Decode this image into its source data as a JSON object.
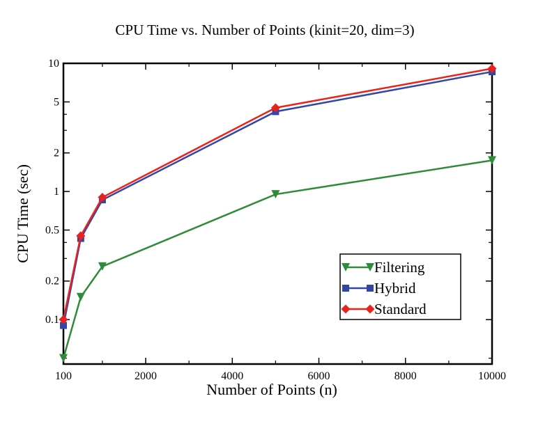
{
  "chart_data": {
    "type": "line",
    "title": "CPU Time vs. Number of Points (kinit=20, dim=3)",
    "xlabel": "Number of Points (n)",
    "ylabel": "CPU Time (sec)",
    "xlim": [
      100,
      10000
    ],
    "ylim": [
      0.045,
      10
    ],
    "yscale": "log",
    "x_ticks": [
      100,
      2000,
      4000,
      6000,
      8000,
      10000
    ],
    "y_ticks": [
      0.1,
      0.2,
      0.5,
      1,
      2,
      5,
      10
    ],
    "x_tick_labels": [
      "100",
      "2000",
      "4000",
      "6000",
      "8000",
      "10000"
    ],
    "y_tick_labels": [
      "0.1",
      "0.2",
      "0.5",
      "1",
      "2",
      "5",
      "10"
    ],
    "grid": false,
    "legend_position": "bottom-right",
    "x": [
      100,
      500,
      1000,
      5000,
      10000
    ],
    "series": [
      {
        "name": "Filtering",
        "marker": "triangle-down",
        "color": "#2e8b3a",
        "values": [
          0.05,
          0.15,
          0.26,
          0.95,
          1.75
        ]
      },
      {
        "name": "Hybrid",
        "marker": "square",
        "color": "#3346a3",
        "values": [
          0.09,
          0.43,
          0.86,
          4.2,
          8.6
        ]
      },
      {
        "name": "Standard",
        "marker": "diamond",
        "color": "#e8221c",
        "values": [
          0.1,
          0.45,
          0.9,
          4.5,
          9.1
        ]
      }
    ]
  }
}
